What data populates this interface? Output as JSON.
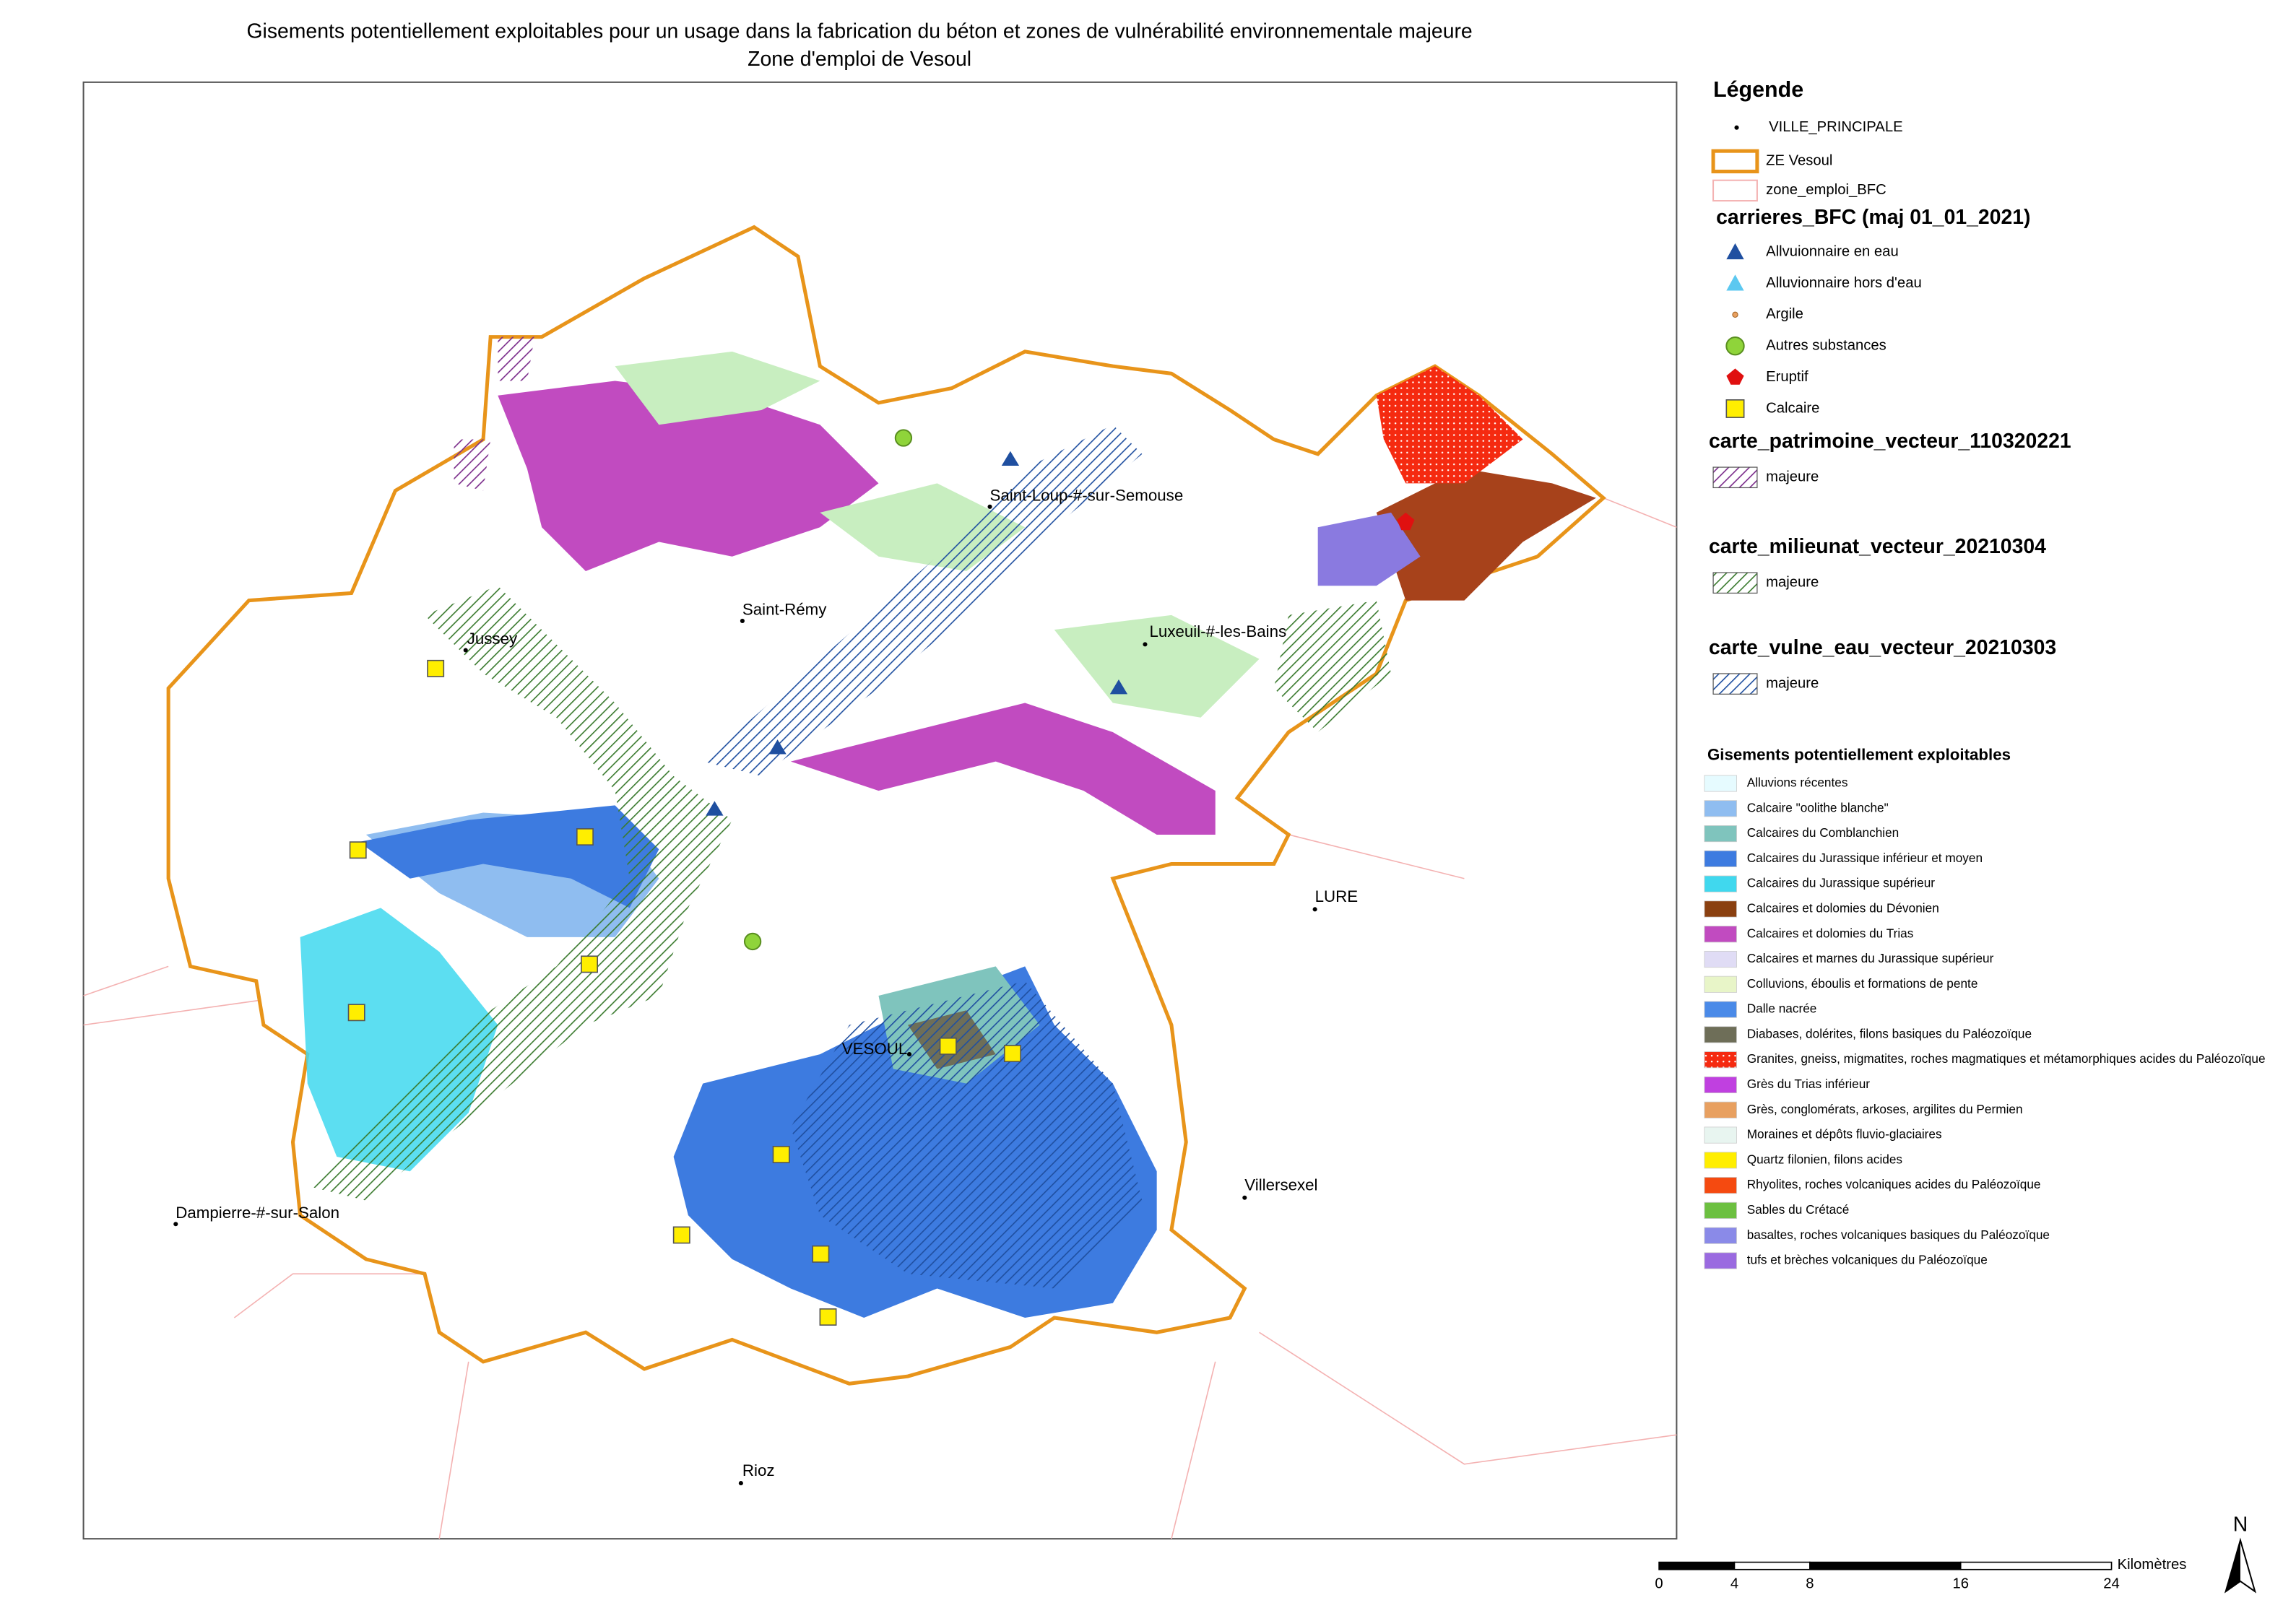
{
  "title": [
    "Gisements potentiellement exploitables pour un usage dans la fabrication du béton et zones de vulnérabilité environnementale majeure",
    "Zone d'emploi de Vesoul"
  ],
  "cities": [
    {
      "label": "Saint-Loup-#-sur-Semouse"
    },
    {
      "label": "Saint-Rémy"
    },
    {
      "label": "Jussey"
    },
    {
      "label": "Luxeuil-#-les-Bains"
    },
    {
      "label": "LURE"
    },
    {
      "label": "VESOUL"
    },
    {
      "label": "Villersexel"
    },
    {
      "label": "Dampierre-#-sur-Salon"
    },
    {
      "label": "Rioz"
    }
  ],
  "legend": {
    "title": "Légende",
    "layers": [
      "VILLE_PRINCIPALE",
      "ZE Vesoul",
      "zone_emploi_BFC"
    ],
    "carrieres": {
      "title": "carrieres_BFC (maj 01_01_2021)",
      "items": [
        "Allvuionnaire en eau",
        "Alluvionnaire hors d'eau",
        "Argile",
        "Autres substances",
        "Eruptif",
        "Calcaire"
      ]
    },
    "patrimoine": {
      "title": "carte_patrimoine_vecteur_110320221",
      "item": "majeure"
    },
    "milieunat": {
      "title": "carte_milieunat_vecteur_20210304",
      "item": "majeure"
    },
    "vulne": {
      "title": "carte_vulne_eau_vecteur_20210303",
      "item": "majeure"
    },
    "gisements": {
      "title": "Gisements potentiellement exploitables",
      "items": [
        "Alluvions récentes",
        "Calcaire \"oolithe blanche\"",
        "Calcaires du Comblanchien",
        "Calcaires du Jurassique inférieur et moyen",
        "Calcaires du Jurassique supérieur",
        "Calcaires et dolomies du Dévonien",
        "Calcaires et dolomies du Trias",
        "Calcaires et marnes du Jurassique supérieur",
        "Colluvions, éboulis et formations de pente",
        "Dalle nacrée",
        "Diabases, dolérites, filons basiques du Paléozoïque",
        "Granites, gneiss, migmatites, roches magmatiques et métamorphiques acides du Paléozoïque",
        "Grès du Trias inférieur",
        "Grès, conglomérats, arkoses, argilites du Permien",
        "Moraines et dépôts fluvio-glaciaires",
        "Quartz filonien, filons acides",
        "Rhyolites, roches volcaniques acides du Paléozoïque",
        "Sables du Crétacé",
        "basaltes, roches volcaniques basiques du Paléozoïque",
        "tufs et brèches volcaniques du Paléozoïque"
      ]
    }
  },
  "scale": {
    "ticks": [
      0,
      4,
      8,
      16,
      24
    ],
    "unit": "Kilomètres"
  },
  "north": "N"
}
